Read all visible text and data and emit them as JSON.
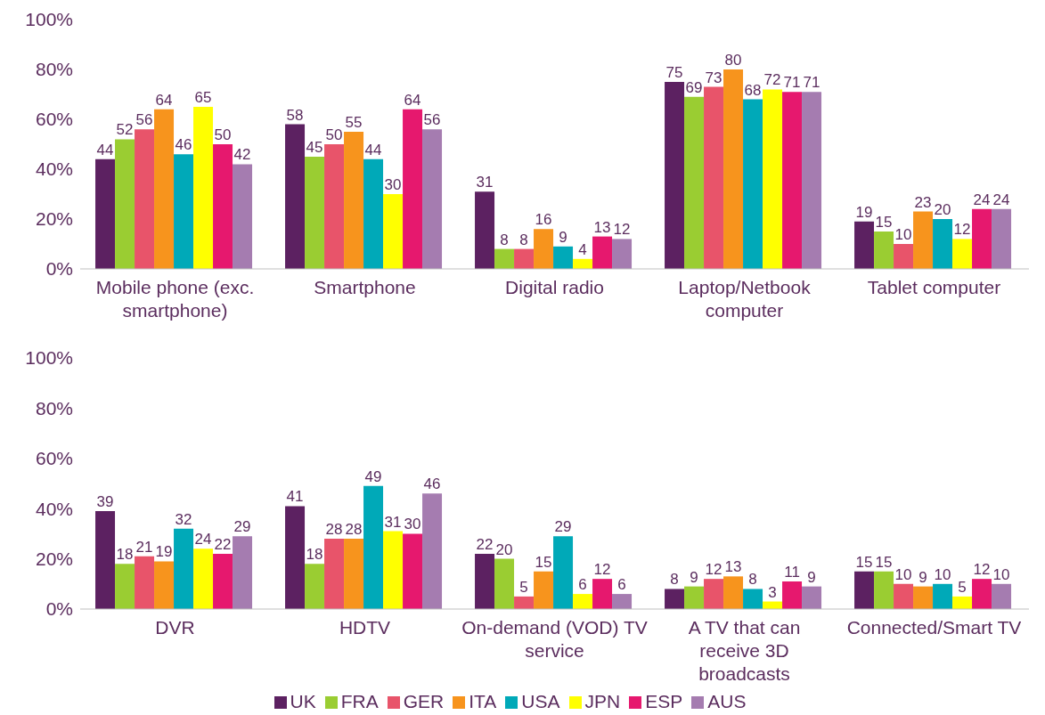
{
  "chart_data": [
    {
      "type": "bar",
      "categories": [
        "Mobile phone (exc. smartphone)",
        "Smartphone",
        "Digital radio",
        "Laptop/Netbook computer",
        "Tablet computer"
      ],
      "series": [
        {
          "color": "#5c2161",
          "values": [
            44,
            58,
            31,
            75,
            19
          ]
        },
        {
          "color": "#9acd32",
          "values": [
            52,
            45,
            8,
            69,
            15
          ]
        },
        {
          "color": "#e8546a",
          "values": [
            56,
            50,
            8,
            73,
            10
          ]
        },
        {
          "color": "#f7941d",
          "values": [
            64,
            55,
            16,
            80,
            23
          ]
        },
        {
          "color": "#00a9b8",
          "values": [
            46,
            44,
            9,
            68,
            20
          ]
        },
        {
          "color": "#ffff00",
          "values": [
            65,
            30,
            4,
            72,
            12
          ]
        },
        {
          "color": "#e6186e",
          "values": [
            50,
            64,
            13,
            71,
            24
          ]
        },
        {
          "color": "#a57cb0",
          "values": [
            42,
            56,
            12,
            71,
            24
          ]
        }
      ],
      "ylim": [
        0,
        100
      ],
      "yticks": [
        {
          "value": 0,
          "label": "0%"
        },
        {
          "value": 20,
          "label": "20%"
        },
        {
          "value": 40,
          "label": "40%"
        },
        {
          "value": 60,
          "label": "60%"
        },
        {
          "value": 80,
          "label": "80%"
        },
        {
          "value": 100,
          "label": "100%"
        }
      ],
      "grid": false,
      "legend": false,
      "data_labels": true
    },
    {
      "type": "bar",
      "categories": [
        "DVR",
        "HDTV",
        "On-demand (VOD) TV service",
        "A TV that can receive 3D broadcasts",
        "Connected/Smart TV"
      ],
      "series": [
        {
          "name": "UK",
          "color": "#5c2161",
          "values": [
            39,
            41,
            22,
            8,
            15
          ]
        },
        {
          "name": "FRA",
          "color": "#9acd32",
          "values": [
            18,
            18,
            20,
            9,
            15
          ]
        },
        {
          "name": "GER",
          "color": "#e8546a",
          "values": [
            21,
            28,
            5,
            12,
            10
          ]
        },
        {
          "name": "ITA",
          "color": "#f7941d",
          "values": [
            19,
            28,
            15,
            13,
            9
          ]
        },
        {
          "name": "USA",
          "color": "#00a9b8",
          "values": [
            32,
            49,
            29,
            8,
            10
          ]
        },
        {
          "name": "JPN",
          "color": "#ffff00",
          "values": [
            24,
            31,
            6,
            3,
            5
          ]
        },
        {
          "name": "ESP",
          "color": "#e6186e",
          "values": [
            22,
            30,
            12,
            11,
            12
          ]
        },
        {
          "name": "AUS",
          "color": "#a57cb0",
          "values": [
            29,
            46,
            6,
            9,
            10
          ]
        }
      ],
      "ylim": [
        0,
        100
      ],
      "yticks": [
        {
          "value": 0,
          "label": "0%"
        },
        {
          "value": 20,
          "label": "20%"
        },
        {
          "value": 40,
          "label": "40%"
        },
        {
          "value": 60,
          "label": "60%"
        },
        {
          "value": 80,
          "label": "80%"
        },
        {
          "value": 100,
          "label": "100%"
        }
      ],
      "grid": false,
      "legend": "bottom",
      "data_labels": true
    }
  ]
}
